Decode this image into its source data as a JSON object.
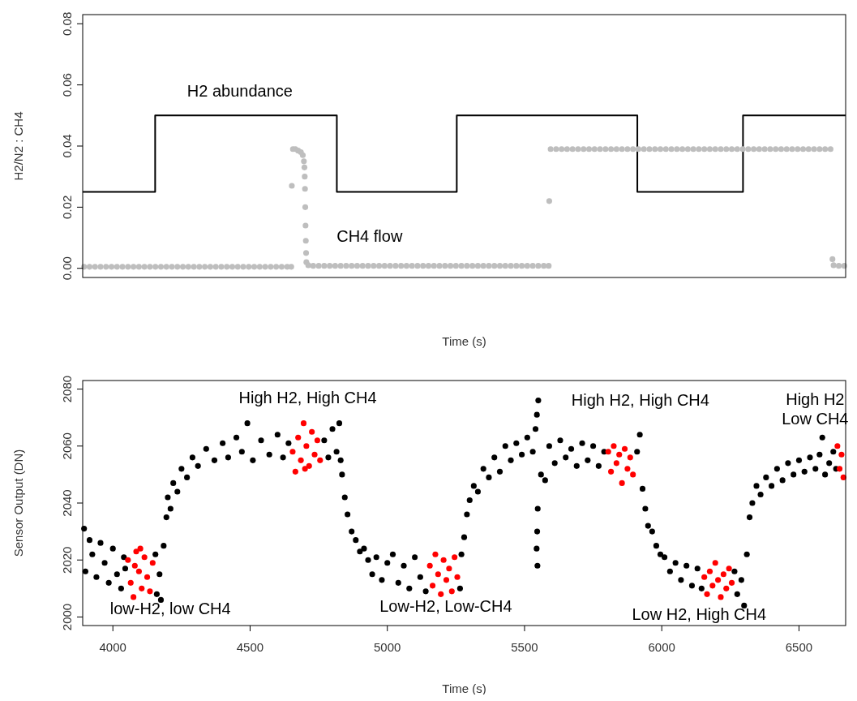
{
  "chart_data": [
    {
      "type": "scatter",
      "ylabel": "H2/N2 : CH4",
      "xlabel": "Time (s)",
      "tick_labels": "y",
      "xlim": [
        3890,
        6670
      ],
      "ylim": [
        -0.003,
        0.083
      ],
      "yticks": [
        {
          "value": 0,
          "label": "0.00"
        },
        {
          "value": 0.02,
          "label": "0.02"
        },
        {
          "value": 0.04,
          "label": "0.04"
        },
        {
          "value": 0.06,
          "label": "0.06"
        },
        {
          "value": 0.08,
          "label": "0.08"
        }
      ],
      "annotations": [
        "H2 abundance",
        "CH4 flow"
      ],
      "series": [
        {
          "type": "step",
          "color": "#000000",
          "x": [
            3890,
            4154,
            4816,
            5253,
            5911,
            6296,
            6670
          ],
          "values": [
            0.025,
            0.05,
            0.025,
            0.05,
            0.025,
            0.05,
            0.05
          ]
        },
        {
          "color": "#bebebe",
          "marker": "circle",
          "x": [
            3895,
            3915,
            3935,
            3955,
            3975,
            3995,
            4015,
            4035,
            4055,
            4075,
            4095,
            4115,
            4135,
            4155,
            4175,
            4195,
            4215,
            4235,
            4255,
            4275,
            4295,
            4315,
            4335,
            4355,
            4375,
            4395,
            4415,
            4435,
            4455,
            4475,
            4495,
            4515,
            4535,
            4555,
            4575,
            4595,
            4615,
            4635,
            4650,
            4652,
            4656,
            4665,
            4675,
            4685,
            4692,
            4696,
            4698,
            4699,
            4700,
            4701,
            4702,
            4703,
            4704,
            4705,
            4712,
            4730,
            4750,
            4770,
            4790,
            4810,
            4830,
            4850,
            4870,
            4890,
            4910,
            4930,
            4950,
            4970,
            4990,
            5010,
            5030,
            5050,
            5070,
            5090,
            5110,
            5130,
            5150,
            5170,
            5190,
            5210,
            5230,
            5250,
            5270,
            5290,
            5310,
            5330,
            5350,
            5370,
            5390,
            5410,
            5430,
            5450,
            5470,
            5490,
            5510,
            5530,
            5550,
            5570,
            5588,
            5590,
            5595,
            5615,
            5635,
            5655,
            5675,
            5695,
            5715,
            5735,
            5755,
            5775,
            5795,
            5815,
            5835,
            5855,
            5875,
            5895,
            5915,
            5935,
            5955,
            5975,
            5995,
            6015,
            6035,
            6055,
            6075,
            6095,
            6115,
            6135,
            6155,
            6175,
            6195,
            6215,
            6235,
            6255,
            6275,
            6295,
            6315,
            6335,
            6355,
            6375,
            6395,
            6415,
            6435,
            6455,
            6475,
            6495,
            6515,
            6535,
            6555,
            6575,
            6595,
            6615,
            6622,
            6626,
            6645,
            6665
          ],
          "values": [
            0.0005,
            0.0005,
            0.0005,
            0.0005,
            0.0005,
            0.0005,
            0.0005,
            0.0005,
            0.0005,
            0.0005,
            0.0005,
            0.0005,
            0.0005,
            0.0005,
            0.0005,
            0.0005,
            0.0005,
            0.0005,
            0.0005,
            0.0005,
            0.0005,
            0.0005,
            0.0005,
            0.0005,
            0.0005,
            0.0005,
            0.0005,
            0.0005,
            0.0005,
            0.0005,
            0.0005,
            0.0005,
            0.0005,
            0.0005,
            0.0005,
            0.0005,
            0.0005,
            0.0005,
            0.0005,
            0.027,
            0.039,
            0.039,
            0.0385,
            0.038,
            0.037,
            0.035,
            0.033,
            0.03,
            0.026,
            0.02,
            0.014,
            0.009,
            0.005,
            0.002,
            0.001,
            0.0008,
            0.0008,
            0.0008,
            0.0008,
            0.0008,
            0.0008,
            0.0008,
            0.0008,
            0.0008,
            0.0008,
            0.0008,
            0.0008,
            0.0008,
            0.0008,
            0.0008,
            0.0008,
            0.0008,
            0.0008,
            0.0008,
            0.0008,
            0.0008,
            0.0008,
            0.0008,
            0.0008,
            0.0008,
            0.0008,
            0.0008,
            0.0008,
            0.0008,
            0.0008,
            0.0008,
            0.0008,
            0.0008,
            0.0008,
            0.0008,
            0.0008,
            0.0008,
            0.0008,
            0.0008,
            0.0008,
            0.0008,
            0.0008,
            0.0008,
            0.0008,
            0.022,
            0.039,
            0.039,
            0.039,
            0.039,
            0.039,
            0.039,
            0.039,
            0.039,
            0.039,
            0.039,
            0.039,
            0.039,
            0.039,
            0.039,
            0.039,
            0.039,
            0.039,
            0.039,
            0.039,
            0.039,
            0.039,
            0.039,
            0.039,
            0.039,
            0.039,
            0.039,
            0.039,
            0.039,
            0.039,
            0.039,
            0.039,
            0.039,
            0.039,
            0.039,
            0.039,
            0.039,
            0.039,
            0.039,
            0.039,
            0.039,
            0.039,
            0.039,
            0.039,
            0.039,
            0.039,
            0.039,
            0.039,
            0.039,
            0.039,
            0.039,
            0.039,
            0.039,
            0.003,
            0.001,
            0.0008,
            0.0008
          ]
        }
      ]
    },
    {
      "type": "scatter",
      "ylabel": "Sensor Output (DN)",
      "xlabel": "Time (s)",
      "marker": "circle",
      "xlim": [
        3890,
        6670
      ],
      "ylim": [
        1997,
        2083
      ],
      "xticks": [
        4000,
        4500,
        5000,
        5500,
        6000,
        6500
      ],
      "yticks": [
        2000,
        2020,
        2040,
        2060,
        2080
      ],
      "annotations": [
        "low-H2, low CH4",
        "High H2, High CH4",
        "Low-H2, Low-CH4",
        "High H2, High CH4",
        "Low H2, High CH4",
        "High H2\nLow CH4"
      ],
      "series": [
        {
          "color": "#000000",
          "x": [
            3895,
            3900,
            3915,
            3925,
            3940,
            3955,
            3970,
            3985,
            4000,
            4015,
            4030,
            4040,
            4045,
            4155,
            4160,
            4170,
            4175,
            4185,
            4195,
            4200,
            4210,
            4220,
            4235,
            4250,
            4270,
            4290,
            4310,
            4340,
            4370,
            4400,
            4420,
            4450,
            4470,
            4490,
            4510,
            4540,
            4570,
            4600,
            4620,
            4640,
            4770,
            4785,
            4800,
            4815,
            4825,
            4830,
            4835,
            4845,
            4855,
            4870,
            4885,
            4900,
            4915,
            4930,
            4945,
            4960,
            4980,
            5000,
            5020,
            5040,
            5060,
            5080,
            5100,
            5120,
            5140,
            5265,
            5270,
            5280,
            5290,
            5300,
            5315,
            5330,
            5350,
            5370,
            5390,
            5410,
            5430,
            5450,
            5470,
            5490,
            5510,
            5530,
            5540,
            5545,
            5550,
            5548,
            5546,
            5544,
            5547,
            5560,
            5575,
            5590,
            5610,
            5630,
            5650,
            5670,
            5690,
            5710,
            5730,
            5750,
            5770,
            5790,
            5910,
            5920,
            5930,
            5940,
            5950,
            5965,
            5980,
            5995,
            6010,
            6030,
            6050,
            6070,
            6090,
            6110,
            6130,
            6145,
            6265,
            6275,
            6290,
            6300,
            6310,
            6320,
            6330,
            6345,
            6360,
            6380,
            6400,
            6420,
            6440,
            6460,
            6480,
            6500,
            6520,
            6540,
            6560,
            6575,
            6585,
            6595,
            6610,
            6625,
            6635
          ],
          "values": [
            2031,
            2016,
            2027,
            2022,
            2014,
            2026,
            2019,
            2012,
            2024,
            2015,
            2010,
            2021,
            2017,
            2022,
            2008,
            2015,
            2006,
            2025,
            2035,
            2042,
            2038,
            2047,
            2044,
            2052,
            2049,
            2056,
            2053,
            2059,
            2055,
            2061,
            2056,
            2063,
            2058,
            2068,
            2055,
            2062,
            2057,
            2064,
            2056,
            2061,
            2062,
            2056,
            2066,
            2058,
            2068,
            2055,
            2050,
            2042,
            2036,
            2030,
            2027,
            2023,
            2024,
            2020,
            2015,
            2021,
            2013,
            2019,
            2022,
            2012,
            2018,
            2010,
            2021,
            2014,
            2009,
            2010,
            2022,
            2028,
            2036,
            2041,
            2046,
            2044,
            2052,
            2049,
            2056,
            2051,
            2060,
            2055,
            2061,
            2057,
            2063,
            2058,
            2066,
            2071,
            2076,
            2038,
            2030,
            2024,
            2018,
            2050,
            2048,
            2060,
            2054,
            2062,
            2056,
            2059,
            2053,
            2061,
            2055,
            2060,
            2053,
            2058,
            2058,
            2064,
            2045,
            2038,
            2032,
            2030,
            2025,
            2022,
            2021,
            2016,
            2019,
            2013,
            2018,
            2011,
            2017,
            2010,
            2016,
            2008,
            2013,
            2004,
            2022,
            2035,
            2040,
            2046,
            2043,
            2049,
            2046,
            2052,
            2048,
            2054,
            2050,
            2055,
            2051,
            2056,
            2052,
            2057,
            2063,
            2050,
            2054,
            2058,
            2052
          ]
        },
        {
          "color": "#ff0000",
          "x": [
            4055,
            4065,
            4075,
            4085,
            4095,
            4105,
            4115,
            4125,
            4135,
            4145,
            4100,
            4080,
            4655,
            4665,
            4675,
            4685,
            4695,
            4705,
            4715,
            4725,
            4735,
            4745,
            4755,
            4700,
            5155,
            5165,
            5175,
            5185,
            5195,
            5205,
            5215,
            5225,
            5235,
            5245,
            5255,
            5805,
            5815,
            5825,
            5835,
            5845,
            5855,
            5865,
            5875,
            5885,
            5895,
            6155,
            6165,
            6175,
            6185,
            6195,
            6205,
            6215,
            6225,
            6235,
            6245,
            6255,
            6640,
            6648,
            6655,
            6662
          ],
          "values": [
            2020,
            2012,
            2007,
            2023,
            2016,
            2010,
            2021,
            2014,
            2009,
            2019,
            2024,
            2018,
            2058,
            2051,
            2063,
            2055,
            2068,
            2060,
            2053,
            2065,
            2057,
            2062,
            2055,
            2052,
            2018,
            2011,
            2022,
            2015,
            2008,
            2020,
            2013,
            2017,
            2009,
            2021,
            2014,
            2058,
            2051,
            2060,
            2054,
            2057,
            2047,
            2059,
            2052,
            2056,
            2050,
            2014,
            2008,
            2016,
            2011,
            2019,
            2013,
            2007,
            2015,
            2010,
            2017,
            2012,
            2060,
            2052,
            2057,
            2049
          ]
        }
      ]
    }
  ]
}
